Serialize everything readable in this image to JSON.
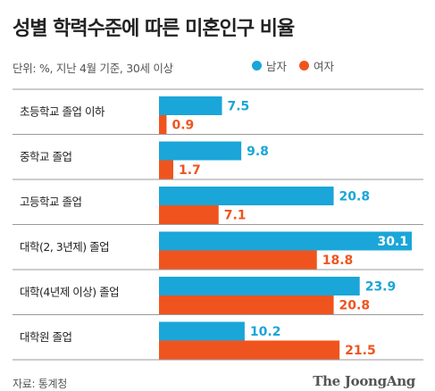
{
  "title": "성별 학력수준에 따른 미혼인구 비율",
  "unit_note": "단위: %, 지난 4월 기준, 30세 이상",
  "colors": {
    "male": "#1aa6d8",
    "female": "#f0541e",
    "divider": "#9a9a9a",
    "label_on_bar": "#ffffff",
    "label_off_bar_male": "#1aa6d8",
    "label_off_bar_female": "#f0541e"
  },
  "source": "자료: 통계청",
  "brand": "The JoongAng",
  "chart_data": {
    "type": "bar",
    "orientation": "horizontal",
    "categories": [
      "초등학교 졸업 이하",
      "중학교 졸업",
      "고등학교 졸업",
      "대학(2, 3년제) 졸업",
      "대학(4년제 이상) 졸업",
      "대학원 졸업"
    ],
    "series": [
      {
        "name": "남자",
        "values": [
          7.5,
          9.8,
          20.8,
          30.1,
          23.9,
          10.2
        ]
      },
      {
        "name": "여자",
        "values": [
          0.9,
          1.7,
          7.1,
          18.8,
          20.8,
          21.5
        ]
      }
    ],
    "value_labels": [
      [
        "7.5",
        "9.8",
        "20.8",
        "30.1",
        "23.9",
        "10.2"
      ],
      [
        "0.9",
        "1.7",
        "7.1",
        "18.8",
        "20.8",
        "21.5"
      ]
    ],
    "xlim": [
      0,
      30.1
    ],
    "legend_position": "top-right",
    "grid": false
  }
}
